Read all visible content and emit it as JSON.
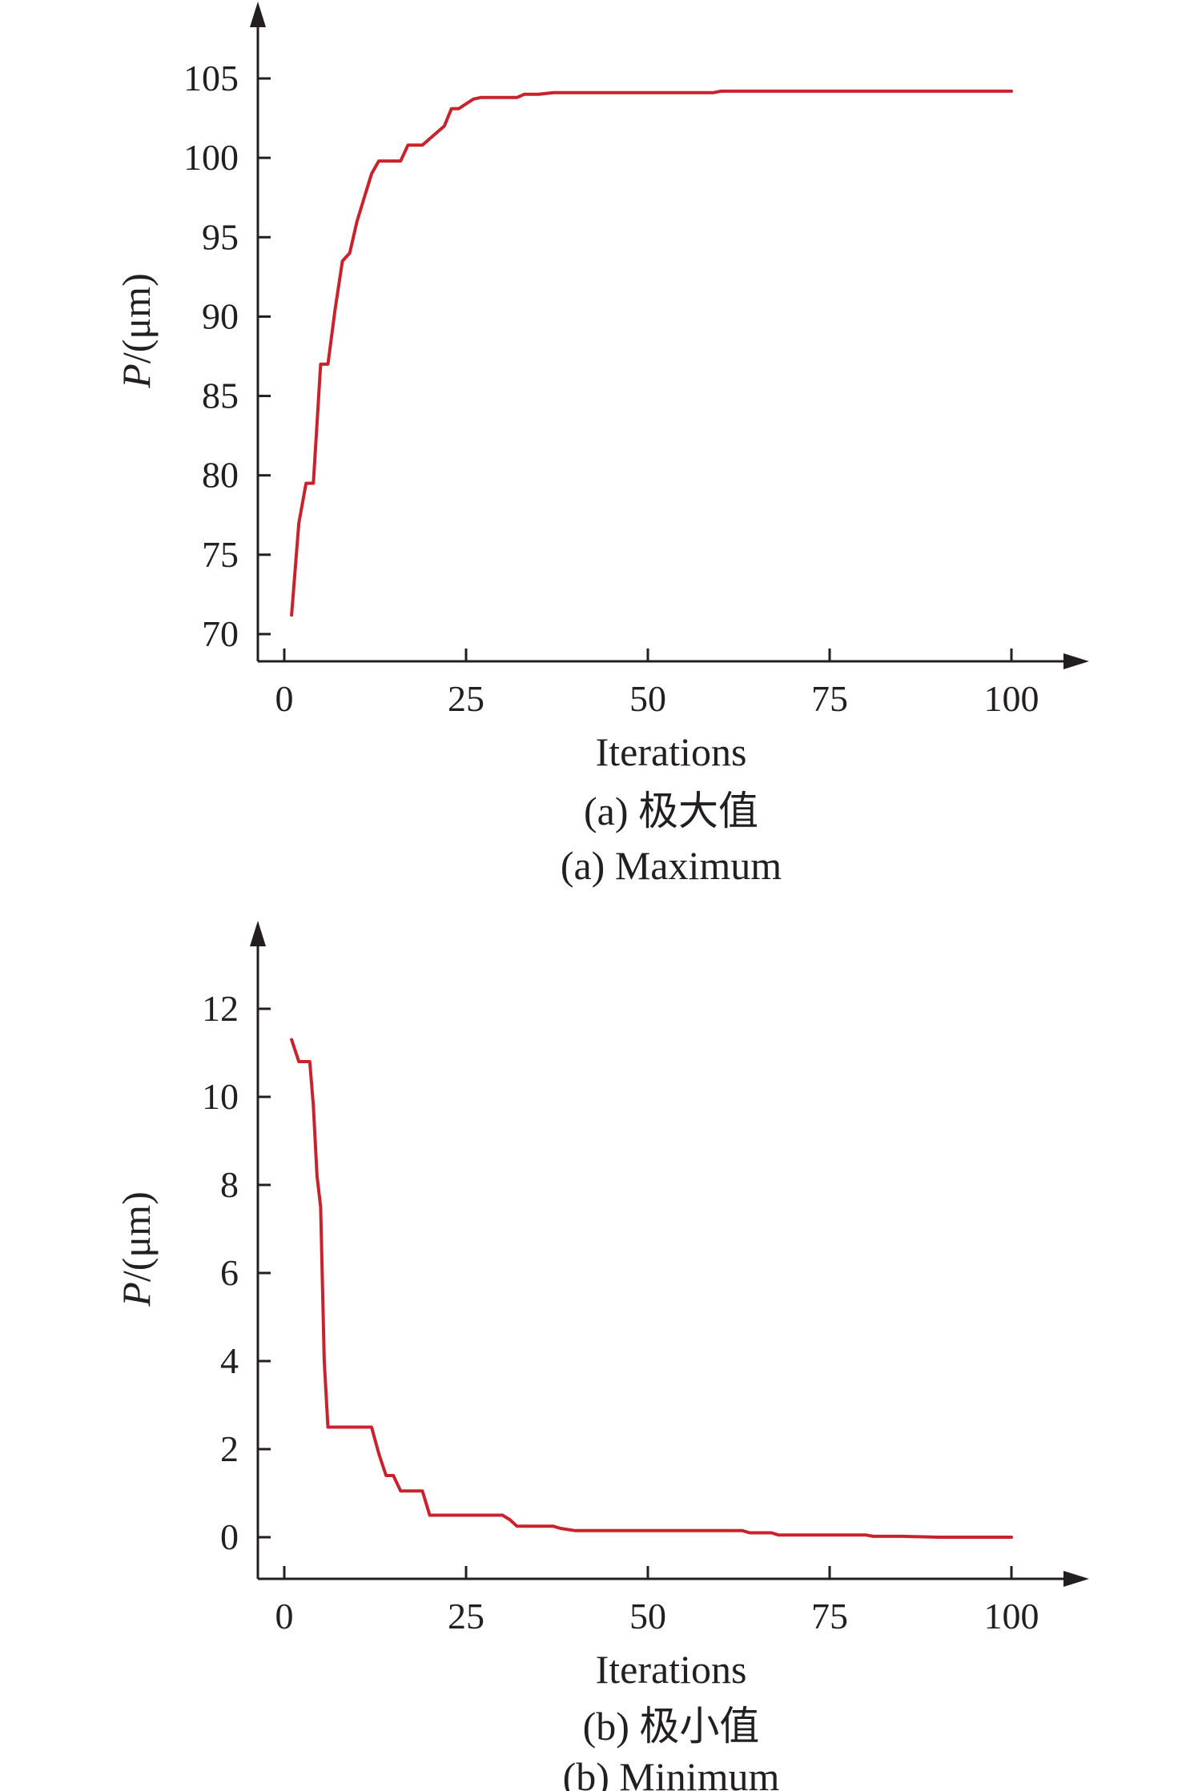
{
  "colors": {
    "line": "#c8232c",
    "axis": "#231f20"
  },
  "chart_data": [
    {
      "type": "line",
      "xlabel": "Iterations",
      "ylabel": {
        "var": "P",
        "unit": "/(μm)"
      },
      "caption_cn": "(a) 极大值",
      "caption_en": "(a) Maximum",
      "xlim": [
        0,
        100
      ],
      "ylim": [
        70,
        105
      ],
      "xticks": [
        "0",
        "25",
        "50",
        "75",
        "100"
      ],
      "yticks": [
        "70",
        "75",
        "80",
        "85",
        "90",
        "95",
        "100",
        "105"
      ],
      "grid": false,
      "series": [
        {
          "x": [
            1,
            2,
            3,
            4,
            5,
            6,
            7,
            8,
            9,
            10,
            11,
            12,
            13,
            14,
            15,
            16,
            17,
            18,
            19,
            20,
            21,
            22,
            23,
            24,
            25,
            26,
            27,
            28,
            30,
            32,
            33,
            35,
            37,
            40,
            45,
            50,
            55,
            59,
            60,
            70,
            80,
            90,
            100
          ],
          "y": [
            71.2,
            77.0,
            79.5,
            79.5,
            87.0,
            87.0,
            90.5,
            93.5,
            94.0,
            96.0,
            97.5,
            99.0,
            99.8,
            99.8,
            99.8,
            99.8,
            100.8,
            100.8,
            100.8,
            101.2,
            101.6,
            102.0,
            103.1,
            103.1,
            103.4,
            103.7,
            103.8,
            103.8,
            103.8,
            103.8,
            104.0,
            104.0,
            104.1,
            104.1,
            104.1,
            104.1,
            104.1,
            104.1,
            104.2,
            104.2,
            104.2,
            104.2,
            104.2
          ]
        }
      ]
    },
    {
      "type": "line",
      "xlabel": "Iterations",
      "ylabel": {
        "var": "P",
        "unit": "/(μm)"
      },
      "caption_cn": "(b) 极小值",
      "caption_en": "(b) Minimum",
      "xlim": [
        0,
        100
      ],
      "ylim": [
        -1,
        13
      ],
      "xticks": [
        "0",
        "25",
        "50",
        "75",
        "100"
      ],
      "yticks": [
        "0",
        "2",
        "4",
        "6",
        "8",
        "10",
        "12"
      ],
      "grid": false,
      "series": [
        {
          "x": [
            1,
            2,
            3,
            3.5,
            4,
            4.5,
            5,
            5.5,
            6,
            6.5,
            7,
            8,
            9,
            10,
            11,
            12,
            13,
            14,
            15,
            16,
            17,
            18,
            19,
            20,
            21,
            25,
            30,
            31,
            32,
            35,
            37,
            38,
            40,
            45,
            50,
            55,
            60,
            63,
            64,
            65,
            67,
            68,
            70,
            75,
            80,
            81,
            85,
            90,
            100
          ],
          "y": [
            11.3,
            10.8,
            10.8,
            10.8,
            9.8,
            8.2,
            7.5,
            4.0,
            2.5,
            2.5,
            2.5,
            2.5,
            2.5,
            2.5,
            2.5,
            2.5,
            1.9,
            1.4,
            1.4,
            1.05,
            1.05,
            1.05,
            1.05,
            0.5,
            0.5,
            0.5,
            0.5,
            0.4,
            0.25,
            0.25,
            0.25,
            0.2,
            0.15,
            0.15,
            0.15,
            0.15,
            0.15,
            0.15,
            0.1,
            0.1,
            0.1,
            0.05,
            0.05,
            0.05,
            0.05,
            0.02,
            0.02,
            0.0,
            0.0
          ]
        }
      ]
    }
  ]
}
